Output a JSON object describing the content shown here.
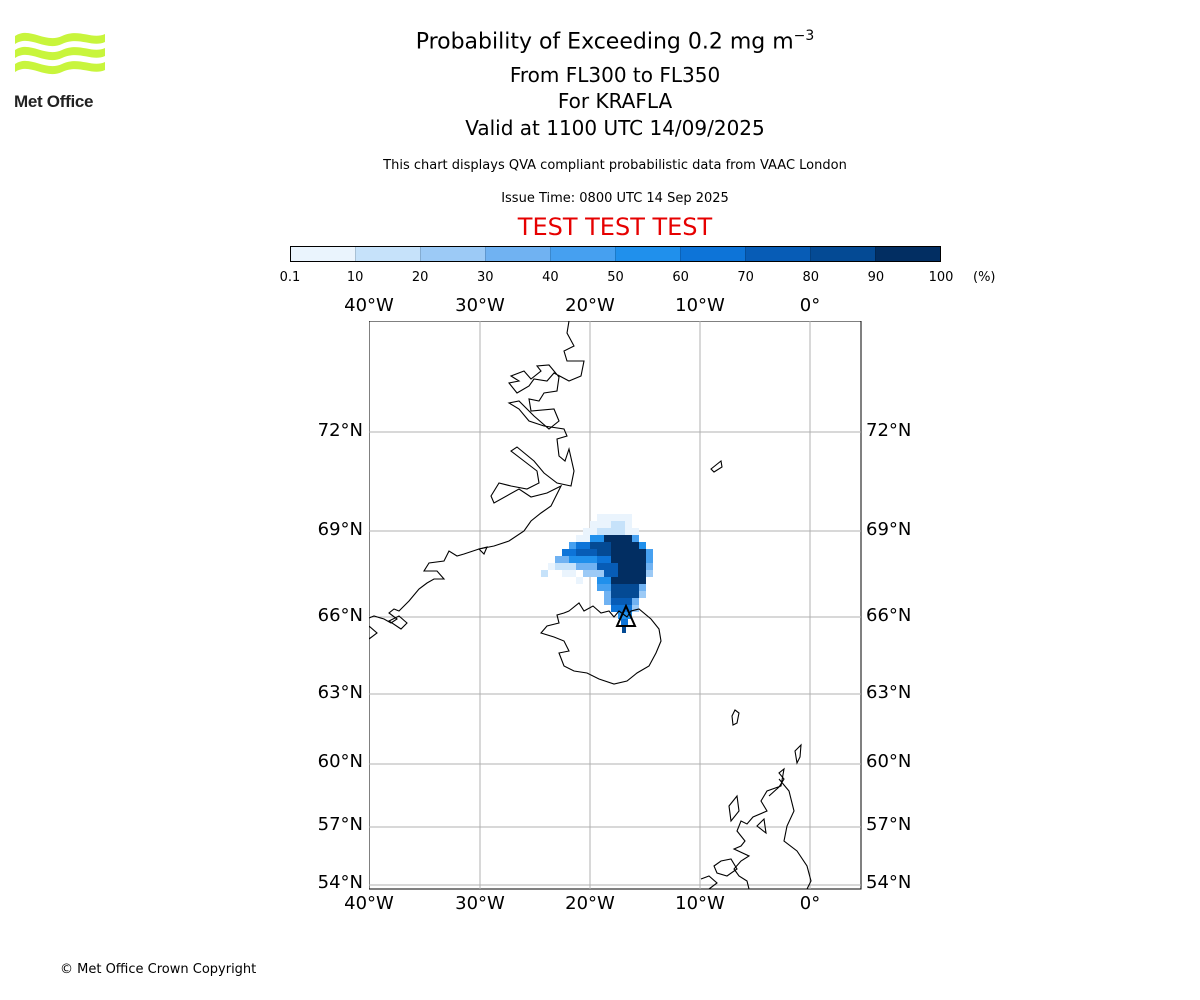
{
  "branding": {
    "logo_text": "Met Office",
    "logo_color": "#c8f53c",
    "copyright": "© Met Office Crown Copyright"
  },
  "header": {
    "title_prefix": "Probability of Exceeding 0.2 mg m",
    "title_exponent": "−3",
    "level_range": "From FL300 to FL350",
    "volcano": "For KRAFLA",
    "valid_time": "Valid at 1100 UTC 14/09/2025",
    "note": "This chart displays QVA compliant probabilistic data from VAAC London",
    "issue_time": "Issue Time: 0800 UTC 14 Sep 2025",
    "test_banner": "TEST TEST TEST",
    "test_color": "#e60000"
  },
  "colorbar": {
    "ticks": [
      "0.1",
      "10",
      "20",
      "30",
      "40",
      "50",
      "60",
      "70",
      "80",
      "90",
      "100"
    ],
    "unit": "(%)",
    "colors": [
      "#eaf4fd",
      "#c6e2fa",
      "#9ccaf6",
      "#70b2f2",
      "#46a0f0",
      "#2090ec",
      "#0d74d8",
      "#075cb6",
      "#044a94",
      "#022e62"
    ]
  },
  "map": {
    "lon_labels": [
      "40°W",
      "30°W",
      "20°W",
      "10°W",
      "0°"
    ],
    "lat_labels": [
      "72°N",
      "69°N",
      "66°N",
      "63°N",
      "60°N",
      "57°N",
      "54°N"
    ],
    "volcano_lat": 65.7,
    "volcano_lon": -16.8,
    "grid": true
  }
}
